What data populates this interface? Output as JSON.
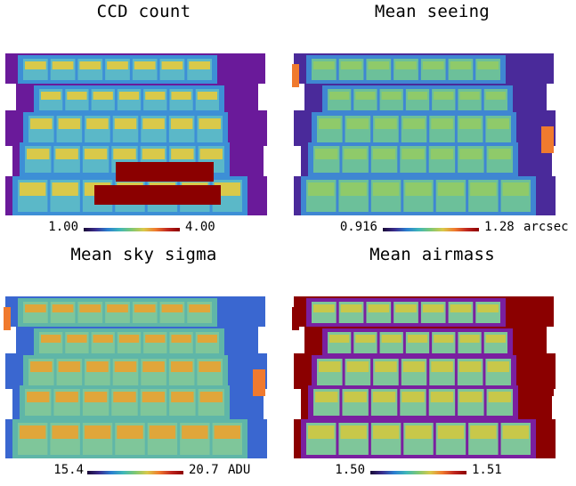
{
  "chart_data": [
    {
      "type": "heatmap",
      "title": "CCD count",
      "colorbar": {
        "min_label": "1.00",
        "max_label": "4.00",
        "unit": ""
      },
      "range": [
        1.0,
        4.0
      ],
      "colors": {
        "outer": "#6a1a9a",
        "single": "#3d8fd6",
        "tile": "#5bb8c8",
        "overlap": "#d9c94a",
        "deep": "#8b0000"
      }
    },
    {
      "type": "heatmap",
      "title": "Mean seeing",
      "colorbar": {
        "min_label": "0.916",
        "max_label": "1.28",
        "unit": "arcsec"
      },
      "range": [
        0.916,
        1.28
      ],
      "colors": {
        "outer": "#4a2a9a",
        "single": "#3f86d2",
        "tile": "#6cc09a",
        "overlap": "#8fca6a",
        "edge": "#f07a2e"
      }
    },
    {
      "type": "heatmap",
      "title": "Mean sky sigma",
      "colorbar": {
        "min_label": "15.4",
        "max_label": "20.7",
        "unit": "ADU"
      },
      "range": [
        15.4,
        20.7
      ],
      "colors": {
        "outer": "#3a67d0",
        "single": "#5fb6a8",
        "tile": "#7fc69a",
        "overlap": "#e0a63a",
        "edge": "#f07a2e"
      }
    },
    {
      "type": "heatmap",
      "title": "Mean airmass",
      "colorbar": {
        "min_label": "1.50",
        "max_label": "1.51",
        "unit": ""
      },
      "range": [
        1.5,
        1.51
      ],
      "colors": {
        "outer": "#8b0000",
        "single": "#7a1fa0",
        "tile": "#7fc69a",
        "overlap": "#c8c84a",
        "edge": "#8b0000"
      }
    }
  ]
}
